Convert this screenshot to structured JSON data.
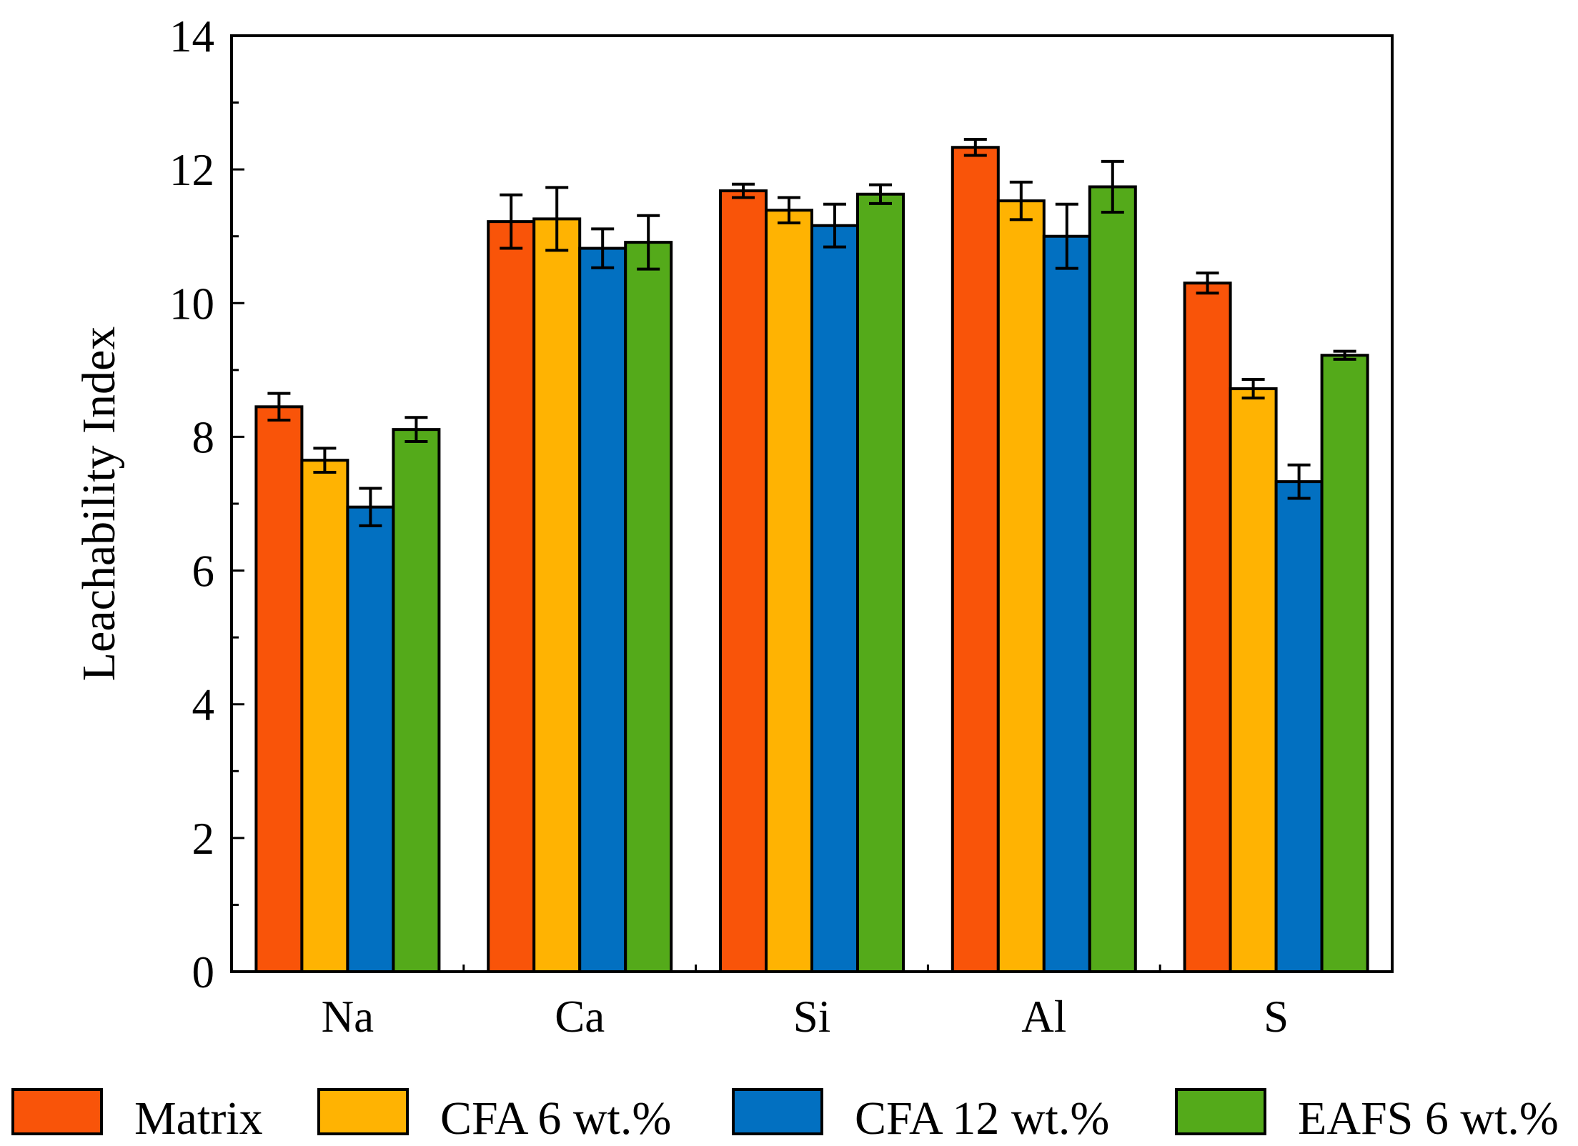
{
  "chart_data": {
    "type": "bar",
    "title": "",
    "xlabel": "",
    "ylabel": "Leachability Index",
    "ylim": [
      0,
      14
    ],
    "yticks": [
      0,
      2,
      4,
      6,
      8,
      10,
      12,
      14
    ],
    "grid": false,
    "legend_position": "bottom",
    "categories": [
      "Na",
      "Ca",
      "Si",
      "Al",
      "S"
    ],
    "series": [
      {
        "name": "Matrix",
        "color": "#F95409",
        "values": [
          8.45,
          11.22,
          11.68,
          12.33,
          10.3
        ],
        "errors": [
          0.2,
          0.4,
          0.1,
          0.12,
          0.15
        ]
      },
      {
        "name": "CFA 6 wt.%",
        "color": "#FFB302",
        "values": [
          7.65,
          11.26,
          11.39,
          11.53,
          8.72
        ],
        "errors": [
          0.18,
          0.47,
          0.19,
          0.28,
          0.14
        ]
      },
      {
        "name": "CFA 12 wt.%",
        "color": "#0270C1",
        "values": [
          6.95,
          10.82,
          11.16,
          11.0,
          7.33
        ],
        "errors": [
          0.28,
          0.29,
          0.32,
          0.48,
          0.25
        ]
      },
      {
        "name": "EAFS 6 wt.%",
        "color": "#54AA1A",
        "values": [
          8.11,
          10.91,
          11.63,
          11.74,
          9.22
        ],
        "errors": [
          0.18,
          0.4,
          0.14,
          0.38,
          0.06
        ]
      }
    ]
  }
}
